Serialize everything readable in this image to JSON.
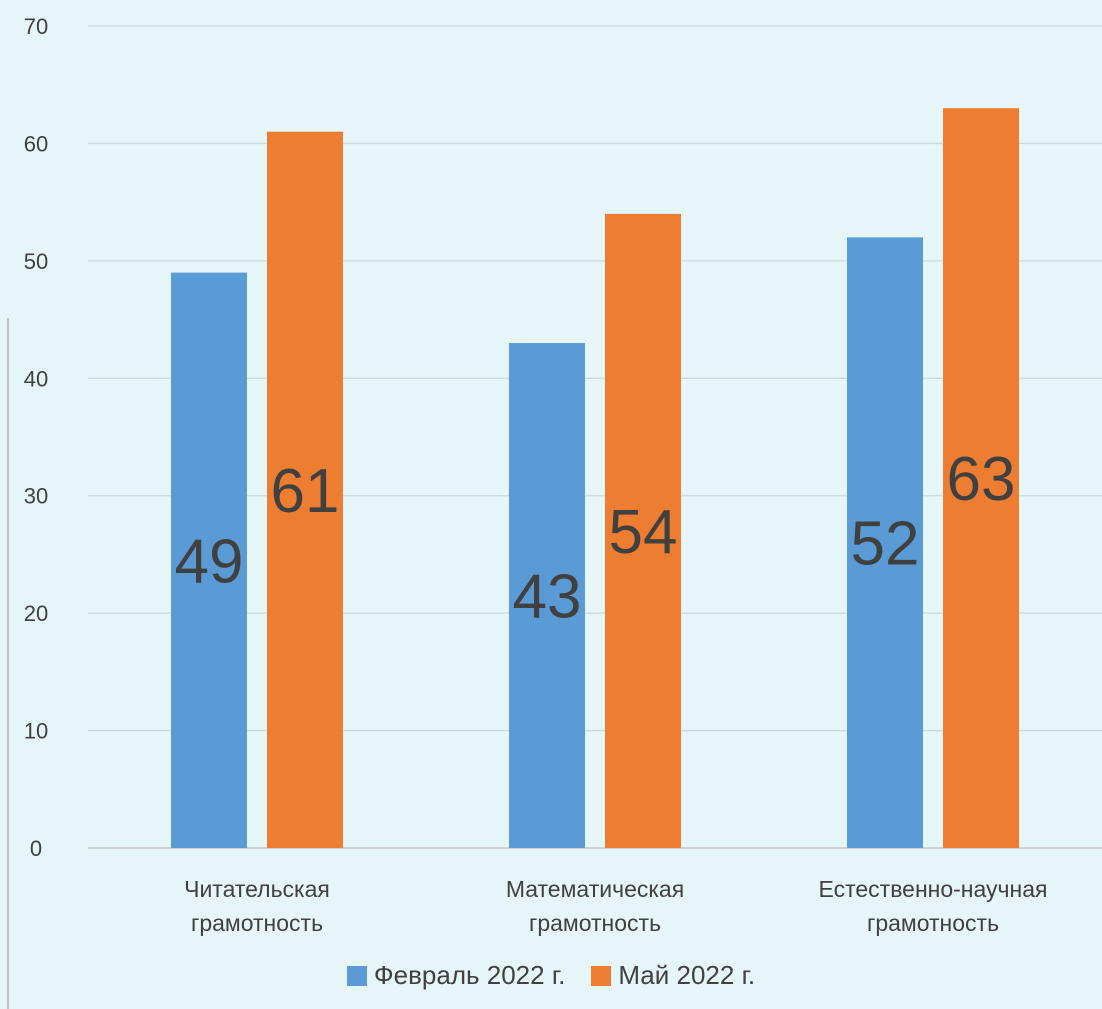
{
  "chart_data": {
    "type": "bar",
    "categories": [
      [
        "Читательская",
        "грамотность"
      ],
      [
        "Математическая",
        "грамотность"
      ],
      [
        "Естественно-научная",
        "грамотность"
      ]
    ],
    "series": [
      {
        "name": "Февраль 2022 г.",
        "color": "#5B9BD5",
        "values": [
          49,
          43,
          52
        ]
      },
      {
        "name": "Май 2022 г.",
        "color": "#ED7D31",
        "values": [
          61,
          54,
          63
        ]
      }
    ],
    "y_ticks": [
      "0",
      "10",
      "20",
      "30",
      "40",
      "50",
      "60",
      "70"
    ],
    "ylim": [
      0,
      70
    ],
    "grid": true,
    "legend_position": "bottom",
    "data_labels": true
  }
}
